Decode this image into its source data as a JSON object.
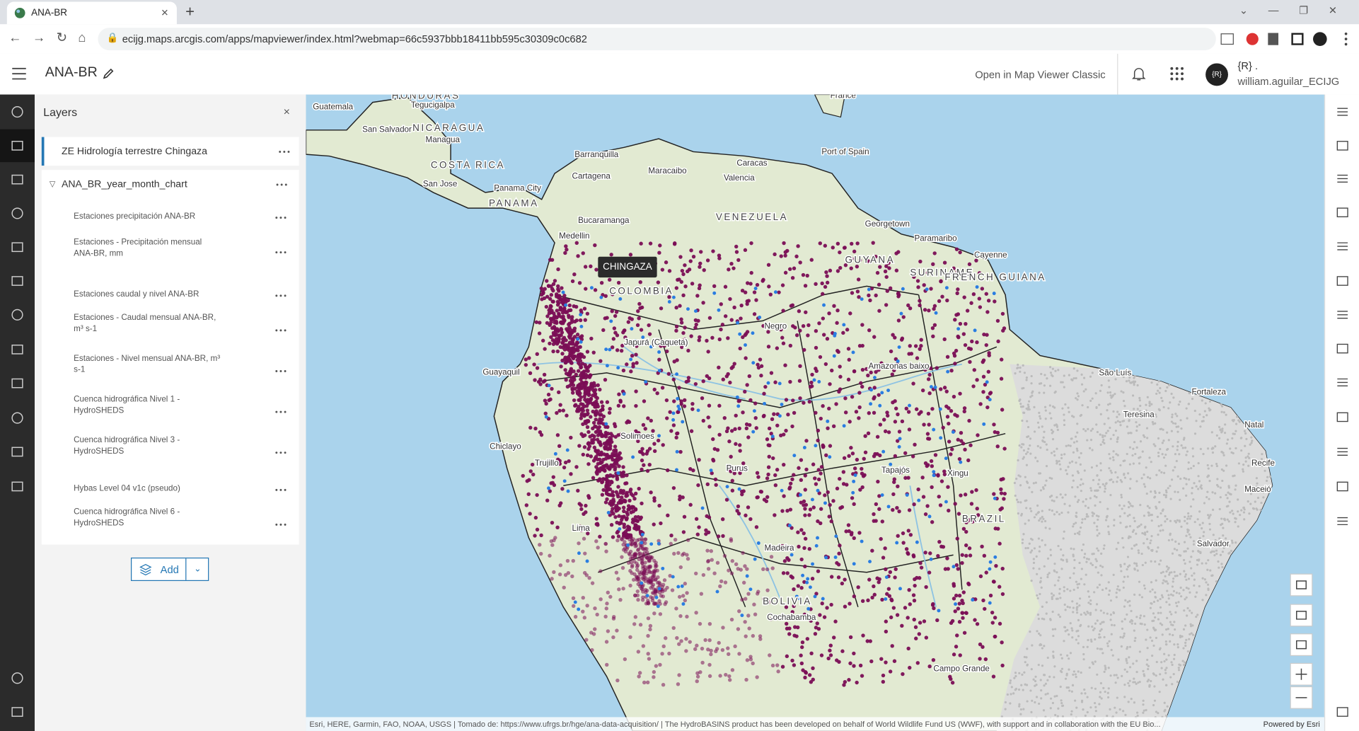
{
  "browser": {
    "tab_title": "ANA-BR",
    "url": "ecijg.maps.arcgis.com/apps/mapviewer/index.html?webmap=66c5937bbb18411bb595c30309c0c682"
  },
  "header": {
    "title": "ANA-BR",
    "open_classic": "Open in Map Viewer Classic",
    "avatar_text": "{R}",
    "user_line1": "{R} .",
    "username": "william.aguilar_ECIJG"
  },
  "layers_panel": {
    "title": "Layers",
    "top_layer": "ZE Hidrología terrestre Chingaza",
    "group": {
      "name": "ANA_BR_year_month_chart",
      "layers": [
        "Estaciones precipitación ANA-BR",
        "Estaciones - Precipitación mensual ANA-BR, mm",
        "Estaciones caudal y nivel ANA-BR",
        "Estaciones - Caudal mensual ANA-BR, m³ s-1",
        "Estaciones - Nivel mensual ANA-BR, m³ s-1",
        "Cuenca hidrográfica Nivel 1 - HydroSHEDS",
        "Cuenca hidrográfica Nivel 3 - HydroSHEDS",
        "Hybas Level 04 v1c (pseudo)",
        "Cuenca hidrográfica Nivel 6 - HydroSHEDS"
      ]
    },
    "add_button": "Add"
  },
  "map": {
    "tooltip": "CHINGAZA",
    "labels": [
      "France",
      "Guatemala",
      "HONDURAS",
      "Tegucigalpa",
      "San Salvador",
      "NICARAGUA",
      "Managua",
      "COSTA RICA",
      "San Jose",
      "Panama City",
      "PANAMA",
      "Barranquilla",
      "Cartagena",
      "Maracaibo",
      "Caracas",
      "Valencia",
      "Port of Spain",
      "VENEZUELA",
      "Bucaramanga",
      "Medellin",
      "Georgetown",
      "Paramaribo",
      "Cayenne",
      "GUYANA",
      "SURINAME",
      "FRENCH GUIANA",
      "COLOMBIA",
      "Negro",
      "Japurá (Caqueta)",
      "Amazonas baixo",
      "São Luís",
      "Fortaleza",
      "Teresina",
      "Natal",
      "Guayaquil",
      "Solimoes",
      "Chiclayo",
      "Trujillo",
      "Purus",
      "Xingu",
      "Recife",
      "Maceió",
      "Tapajós",
      "BRAZIL",
      "Madeira",
      "Lima",
      "Salvador",
      "BOLIVIA",
      "Cochabamba",
      "Campo Grande"
    ],
    "attribution": "Esri, HERE, Garmin, FAO, NOAA, USGS | Tomado de: https://www.ufrgs.br/hge/ana-data-acquisition/ | The HydroBASINS product has been developed on behalf of World Wildlife Fund US (WWF), with support and in collaboration with the EU Bio...",
    "powered_by": "Powered by Esri"
  }
}
